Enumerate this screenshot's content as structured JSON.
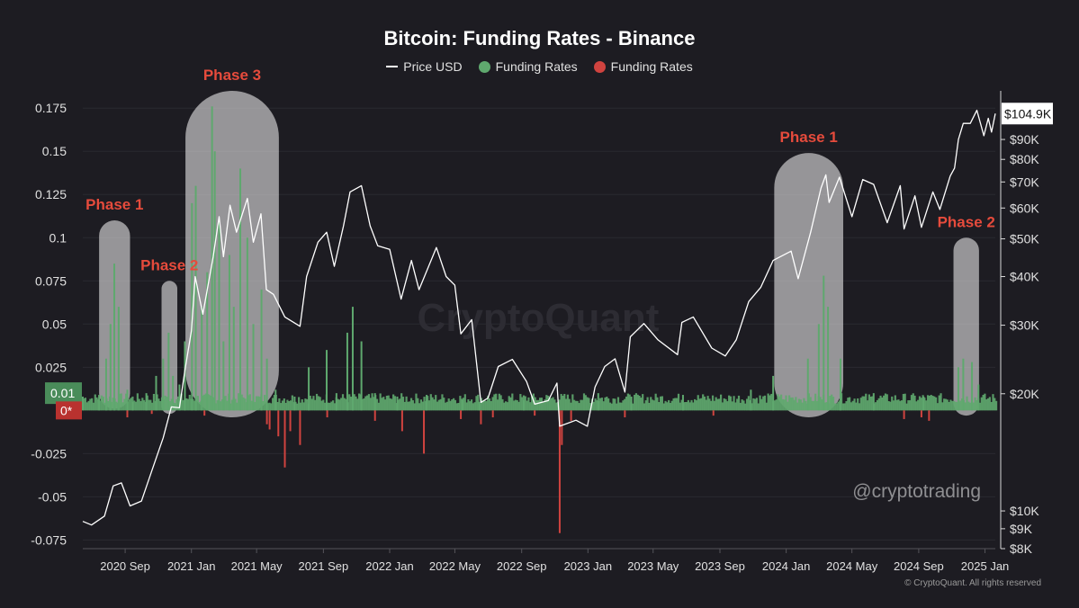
{
  "title": "Bitcoin: Funding Rates - Binance",
  "legend": {
    "price": "Price USD",
    "funding_pos": "Funding Rates",
    "funding_neg": "Funding Rates"
  },
  "watermark": "CryptoQuant",
  "handle": "@cryptotrading",
  "footer": "© CryptoQuant. All rights reserved",
  "colors": {
    "background": "#1d1c22",
    "price": "#ffffff",
    "funding_positive": "#5fa86e",
    "funding_negative": "#d0433f",
    "annotation": "#e64b3c",
    "current_price_tag": "#ffffff"
  },
  "chart_data": {
    "type": "line",
    "title": "Bitcoin: Funding Rates - Binance",
    "x_ticks": [
      "2020 Sep",
      "2021 Jan",
      "2021 May",
      "2021 Sep",
      "2022 Jan",
      "2022 May",
      "2022 Sep",
      "2023 Jan",
      "2023 May",
      "2023 Sep",
      "2024 Jan",
      "2024 May",
      "2024 Sep",
      "2025 Jan"
    ],
    "x_range": [
      "2020-06-15",
      "2025-01-20"
    ],
    "y_left": {
      "ticks": [
        "0.175",
        "0.15",
        "0.125",
        "0.1",
        "0.075",
        "0.05",
        "0.025",
        "-0.025",
        "-0.05",
        "-0.075"
      ],
      "range": [
        -0.08,
        0.185
      ],
      "badge_pos": "0.01",
      "badge_zero": "0*"
    },
    "y_right": {
      "scale": "log",
      "ticks": [
        "$90K",
        "$80K",
        "$70K",
        "$60K",
        "$50K",
        "$40K",
        "$30K",
        "$20K",
        "$10K",
        "$9K",
        "$8K"
      ],
      "current_label": "$104.9K"
    },
    "series": [
      {
        "name": "Price USD",
        "type": "line",
        "points": [
          [
            "2020-06-15",
            9400
          ],
          [
            "2020-07-01",
            9200
          ],
          [
            "2020-07-25",
            9700
          ],
          [
            "2020-08-10",
            11600
          ],
          [
            "2020-08-25",
            11800
          ],
          [
            "2020-09-10",
            10300
          ],
          [
            "2020-10-01",
            10600
          ],
          [
            "2020-10-21",
            12800
          ],
          [
            "2020-11-10",
            15400
          ],
          [
            "2020-11-25",
            18500
          ],
          [
            "2020-12-10",
            18400
          ],
          [
            "2020-12-20",
            23000
          ],
          [
            "2021-01-01",
            29000
          ],
          [
            "2021-01-08",
            40000
          ],
          [
            "2021-01-22",
            32000
          ],
          [
            "2021-02-10",
            45000
          ],
          [
            "2021-02-21",
            57000
          ],
          [
            "2021-03-01",
            45000
          ],
          [
            "2021-03-13",
            61000
          ],
          [
            "2021-03-25",
            52000
          ],
          [
            "2021-04-14",
            63500
          ],
          [
            "2021-04-25",
            49000
          ],
          [
            "2021-05-09",
            58000
          ],
          [
            "2021-05-19",
            37000
          ],
          [
            "2021-06-01",
            36000
          ],
          [
            "2021-06-22",
            31500
          ],
          [
            "2021-07-20",
            29800
          ],
          [
            "2021-08-01",
            40000
          ],
          [
            "2021-08-22",
            49000
          ],
          [
            "2021-09-07",
            52000
          ],
          [
            "2021-09-21",
            42500
          ],
          [
            "2021-10-08",
            54000
          ],
          [
            "2021-10-20",
            66000
          ],
          [
            "2021-11-10",
            68500
          ],
          [
            "2021-11-26",
            54000
          ],
          [
            "2021-12-10",
            48000
          ],
          [
            "2022-01-01",
            47000
          ],
          [
            "2022-01-22",
            35000
          ],
          [
            "2022-02-10",
            44000
          ],
          [
            "2022-02-24",
            37000
          ],
          [
            "2022-03-28",
            47500
          ],
          [
            "2022-04-15",
            40000
          ],
          [
            "2022-05-01",
            38000
          ],
          [
            "2022-05-12",
            28500
          ],
          [
            "2022-06-01",
            31000
          ],
          [
            "2022-06-18",
            19000
          ],
          [
            "2022-07-01",
            19500
          ],
          [
            "2022-07-20",
            23500
          ],
          [
            "2022-08-15",
            24500
          ],
          [
            "2022-09-10",
            21500
          ],
          [
            "2022-09-25",
            18800
          ],
          [
            "2022-10-20",
            19200
          ],
          [
            "2022-11-05",
            21300
          ],
          [
            "2022-11-10",
            16500
          ],
          [
            "2022-12-10",
            17100
          ],
          [
            "2022-12-31",
            16500
          ],
          [
            "2023-01-14",
            20800
          ],
          [
            "2023-02-01",
            23500
          ],
          [
            "2023-02-20",
            24600
          ],
          [
            "2023-03-10",
            20200
          ],
          [
            "2023-03-20",
            28000
          ],
          [
            "2023-04-14",
            30300
          ],
          [
            "2023-05-10",
            27500
          ],
          [
            "2023-06-15",
            25200
          ],
          [
            "2023-06-23",
            30500
          ],
          [
            "2023-07-14",
            31500
          ],
          [
            "2023-08-17",
            26200
          ],
          [
            "2023-09-11",
            25000
          ],
          [
            "2023-10-01",
            27500
          ],
          [
            "2023-10-24",
            34500
          ],
          [
            "2023-11-15",
            37500
          ],
          [
            "2023-12-08",
            44000
          ],
          [
            "2024-01-10",
            46500
          ],
          [
            "2024-01-23",
            39500
          ],
          [
            "2024-02-15",
            52000
          ],
          [
            "2024-03-05",
            67500
          ],
          [
            "2024-03-14",
            73000
          ],
          [
            "2024-03-20",
            62000
          ],
          [
            "2024-04-08",
            72000
          ],
          [
            "2024-05-01",
            57000
          ],
          [
            "2024-05-21",
            71000
          ],
          [
            "2024-06-10",
            69000
          ],
          [
            "2024-07-05",
            55000
          ],
          [
            "2024-07-29",
            68500
          ],
          [
            "2024-08-05",
            53000
          ],
          [
            "2024-08-25",
            64500
          ],
          [
            "2024-09-06",
            53500
          ],
          [
            "2024-09-27",
            66000
          ],
          [
            "2024-10-10",
            59500
          ],
          [
            "2024-10-29",
            72500
          ],
          [
            "2024-11-06",
            76000
          ],
          [
            "2024-11-13",
            90000
          ],
          [
            "2024-11-22",
            99000
          ],
          [
            "2024-12-05",
            99000
          ],
          [
            "2024-12-17",
            107000
          ],
          [
            "2024-12-30",
            92000
          ],
          [
            "2025-01-07",
            102000
          ],
          [
            "2025-01-13",
            94000
          ],
          [
            "2025-01-20",
            104900
          ]
        ]
      },
      {
        "name": "Funding Rates",
        "type": "bar",
        "points": [
          [
            "2020-06-15",
            0.008
          ],
          [
            "2020-07-15",
            0.009
          ],
          [
            "2020-07-28",
            0.03
          ],
          [
            "2020-08-05",
            0.05
          ],
          [
            "2020-08-12",
            0.085
          ],
          [
            "2020-08-20",
            0.06
          ],
          [
            "2020-09-05",
            0.012
          ],
          [
            "2020-09-15",
            0.005
          ],
          [
            "2020-10-10",
            0.01
          ],
          [
            "2020-10-28",
            0.02
          ],
          [
            "2020-11-10",
            0.03
          ],
          [
            "2020-11-20",
            0.045
          ],
          [
            "2020-11-28",
            0.02
          ],
          [
            "2020-12-10",
            0.015
          ],
          [
            "2020-12-20",
            0.04
          ],
          [
            "2021-01-02",
            0.12
          ],
          [
            "2021-01-09",
            0.13
          ],
          [
            "2021-01-20",
            0.06
          ],
          [
            "2021-01-30",
            0.08
          ],
          [
            "2021-02-08",
            0.176
          ],
          [
            "2021-02-13",
            0.15
          ],
          [
            "2021-02-21",
            0.11
          ],
          [
            "2021-03-01",
            0.04
          ],
          [
            "2021-03-12",
            0.09
          ],
          [
            "2021-03-20",
            0.06
          ],
          [
            "2021-04-01",
            0.14
          ],
          [
            "2021-04-14",
            0.1
          ],
          [
            "2021-04-25",
            0.05
          ],
          [
            "2021-05-10",
            0.07
          ],
          [
            "2021-05-20",
            0.03
          ],
          [
            "2021-06-05",
            0.012
          ],
          [
            "2021-07-10",
            0.008
          ],
          [
            "2021-08-05",
            0.025
          ],
          [
            "2021-09-07",
            0.035
          ],
          [
            "2021-09-25",
            0.01
          ],
          [
            "2021-10-15",
            0.045
          ],
          [
            "2021-10-25",
            0.06
          ],
          [
            "2021-11-10",
            0.04
          ],
          [
            "2021-12-05",
            0.01
          ],
          [
            "2022-01-15",
            0.008
          ],
          [
            "2022-03-10",
            0.009
          ],
          [
            "2022-05-15",
            0.006
          ],
          [
            "2022-06-15",
            0.005
          ],
          [
            "2022-09-05",
            0.006
          ],
          [
            "2023-01-20",
            0.01
          ],
          [
            "2023-03-22",
            0.008
          ],
          [
            "2023-06-25",
            0.009
          ],
          [
            "2023-10-28",
            0.012
          ],
          [
            "2023-12-08",
            0.02
          ],
          [
            "2024-02-10",
            0.03
          ],
          [
            "2024-03-01",
            0.05
          ],
          [
            "2024-03-10",
            0.078
          ],
          [
            "2024-03-18",
            0.06
          ],
          [
            "2024-04-10",
            0.03
          ],
          [
            "2024-06-10",
            0.01
          ],
          [
            "2024-09-10",
            0.008
          ],
          [
            "2024-11-13",
            0.025
          ],
          [
            "2024-11-22",
            0.03
          ],
          [
            "2024-12-08",
            0.028
          ],
          [
            "2024-12-20",
            0.015
          ]
        ]
      },
      {
        "name": "Funding Rates",
        "type": "bar",
        "points": [
          [
            "2020-09-05",
            -0.004
          ],
          [
            "2020-10-20",
            -0.002
          ],
          [
            "2021-01-25",
            -0.003
          ],
          [
            "2021-05-20",
            -0.008
          ],
          [
            "2021-05-25",
            -0.011
          ],
          [
            "2021-06-10",
            -0.015
          ],
          [
            "2021-06-22",
            -0.033
          ],
          [
            "2021-07-02",
            -0.012
          ],
          [
            "2021-07-20",
            -0.02
          ],
          [
            "2021-09-08",
            -0.004
          ],
          [
            "2021-12-05",
            -0.006
          ],
          [
            "2022-01-24",
            -0.012
          ],
          [
            "2022-03-05",
            -0.025
          ],
          [
            "2022-05-12",
            -0.005
          ],
          [
            "2022-06-18",
            -0.008
          ],
          [
            "2022-07-10",
            -0.004
          ],
          [
            "2022-09-25",
            -0.003
          ],
          [
            "2022-11-10",
            -0.071
          ],
          [
            "2022-11-14",
            -0.02
          ],
          [
            "2022-12-01",
            -0.006
          ],
          [
            "2023-03-10",
            -0.004
          ],
          [
            "2023-08-20",
            -0.003
          ],
          [
            "2024-08-05",
            -0.005
          ],
          [
            "2024-09-06",
            -0.004
          ],
          [
            "2024-09-20",
            -0.006
          ]
        ]
      }
    ],
    "annotations": [
      {
        "label": "Phase 1",
        "from": "2020-07-15",
        "to": "2020-09-10",
        "top": 0.11,
        "bottom": 0.001
      },
      {
        "label": "Phase 2",
        "from": "2020-11-07",
        "to": "2020-12-06",
        "top": 0.075,
        "bottom": -0.002
      },
      {
        "label": "Phase 3",
        "from": "2020-12-21",
        "to": "2021-06-11",
        "top": 0.185,
        "bottom": -0.004
      },
      {
        "label": "Phase 1",
        "from": "2023-12-10",
        "to": "2024-04-15",
        "top": 0.149,
        "bottom": -0.004
      },
      {
        "label": "Phase 2",
        "from": "2024-11-04",
        "to": "2024-12-21",
        "top": 0.1,
        "bottom": -0.003
      }
    ],
    "grid": true,
    "legend_position": "top-center"
  }
}
